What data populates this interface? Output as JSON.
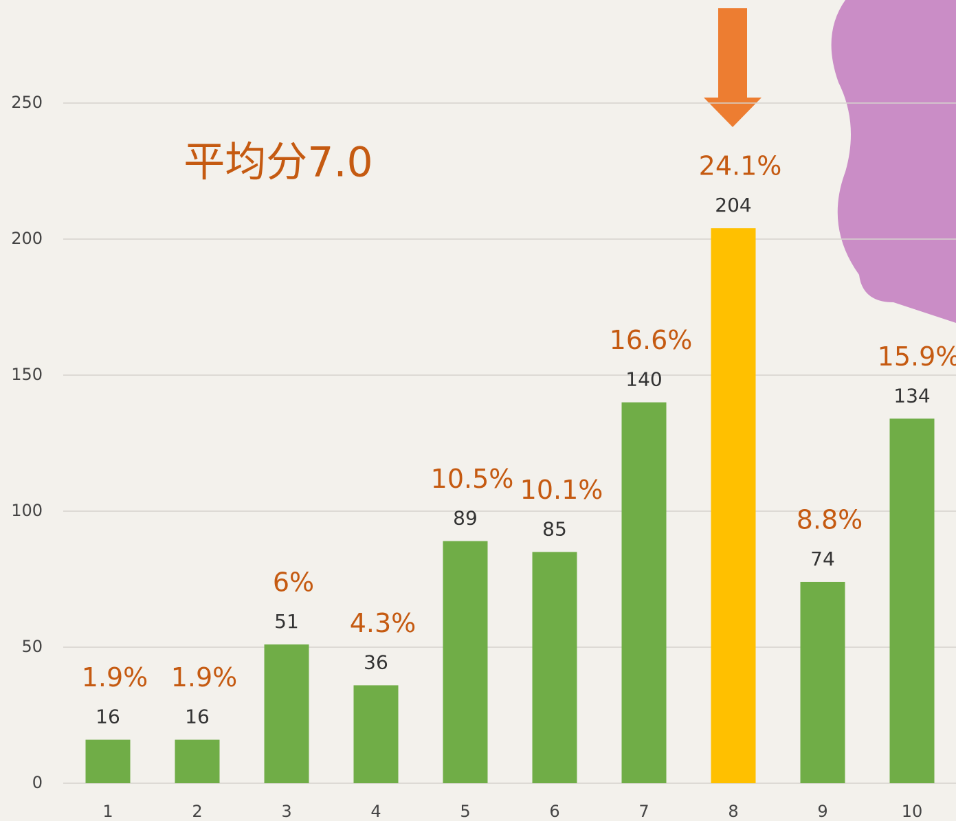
{
  "chart_data": {
    "type": "bar",
    "annotation": "平均分7.0",
    "categories": [
      "1",
      "2",
      "3",
      "4",
      "5",
      "6",
      "7",
      "8",
      "9",
      "10"
    ],
    "values": [
      16,
      16,
      51,
      36,
      89,
      85,
      140,
      204,
      74,
      134
    ],
    "percent_labels": [
      "1.9%",
      "1.9%",
      "6%",
      "4.3%",
      "10.5%",
      "10.1%",
      "16.6%",
      "24.1%",
      "8.8%",
      "15.9%"
    ],
    "colors": [
      "#70ad47",
      "#70ad47",
      "#70ad47",
      "#70ad47",
      "#70ad47",
      "#70ad47",
      "#70ad47",
      "#ffc000",
      "#70ad47",
      "#70ad47"
    ],
    "ylim": [
      0,
      250
    ],
    "yticks": [
      0,
      50,
      100,
      150,
      200,
      250
    ],
    "grid": true
  }
}
